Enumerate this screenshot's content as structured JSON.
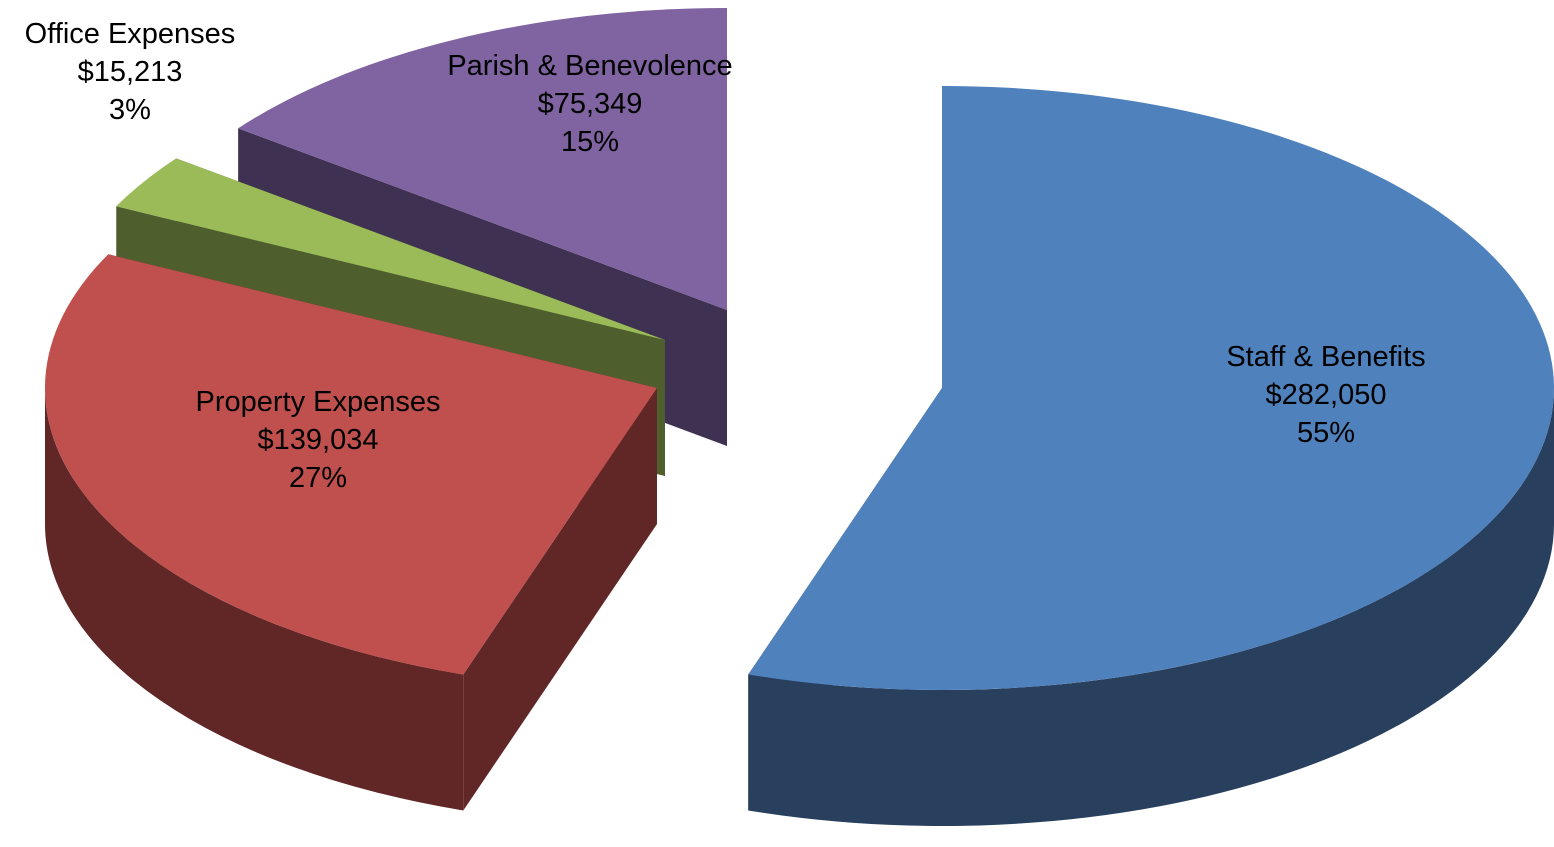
{
  "chart_data": {
    "type": "pie",
    "title": "",
    "slices": [
      {
        "label": "Staff & Benefits",
        "amount": "$282,050",
        "percent": "55%",
        "value": 282050,
        "color": "#4F81BD",
        "side_color": "#28405E"
      },
      {
        "label": "Property Expenses",
        "amount": "$139,034",
        "percent": "27%",
        "value": 139034,
        "color": "#C0504D",
        "side_color": "#602726"
      },
      {
        "label": "Office Expenses",
        "amount": "$15,213",
        "percent": "3%",
        "value": 15213,
        "color": "#9BBB59",
        "side_color": "#4E5E2D"
      },
      {
        "label": "Parish & Benevolence",
        "amount": "$75,349",
        "percent": "15%",
        "value": 75349,
        "color": "#8064A2",
        "side_color": "#3F3152"
      }
    ]
  }
}
